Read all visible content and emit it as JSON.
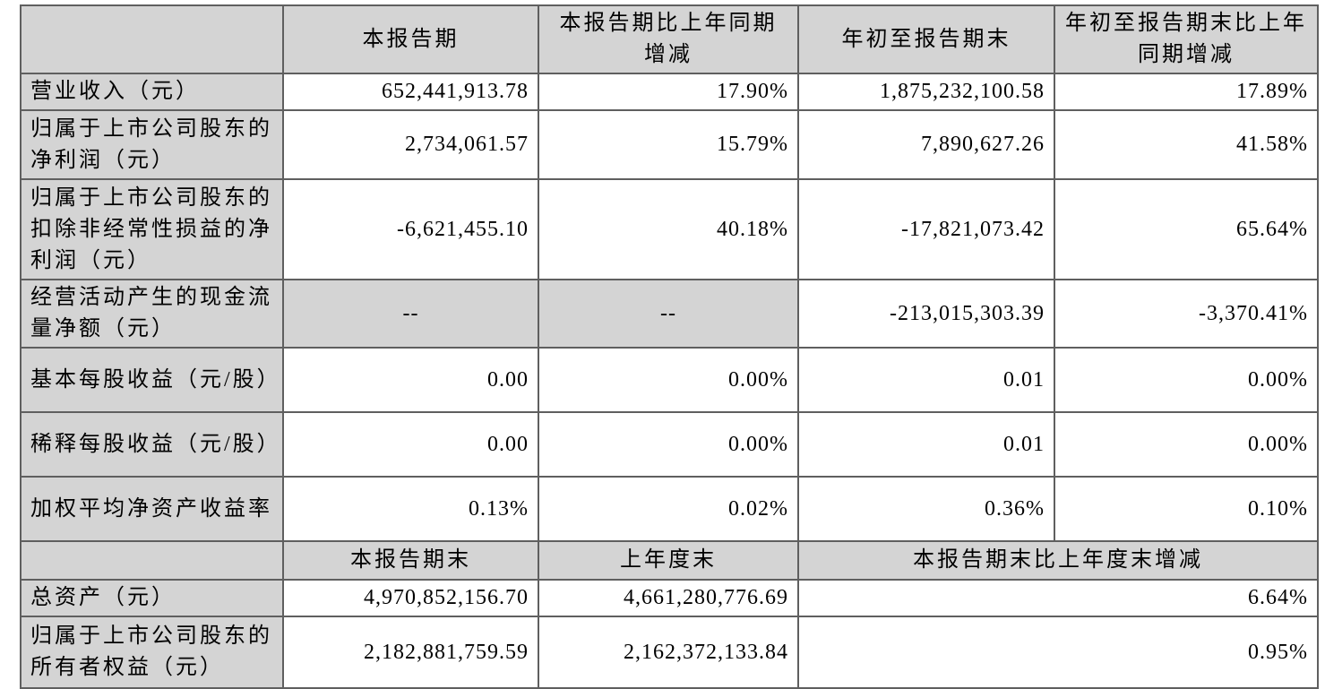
{
  "page": {
    "background_color": "#ffffff",
    "gray_fill_color": "#d4d4d4",
    "border_color": "#5f5f5f",
    "text_color": "#000000"
  },
  "table": {
    "top_header": {
      "col0": "",
      "col1": "本报告期",
      "col2": "本报告期比上年同期增减",
      "col3": "年初至报告期末",
      "col4": "年初至报告期末比上年同期增减"
    },
    "rows": [
      {
        "label": "营业收入（元）",
        "c1": "652,441,913.78",
        "c2": "17.90%",
        "c3": "1,875,232,100.58",
        "c4": "17.89%"
      },
      {
        "label": "归属于上市公司股东的净利润（元）",
        "c1": "2,734,061.57",
        "c2": "15.79%",
        "c3": "7,890,627.26",
        "c4": "41.58%"
      },
      {
        "label": "归属于上市公司股东的扣除非经常性损益的净利润（元）",
        "c1": "-6,621,455.10",
        "c2": "40.18%",
        "c3": "-17,821,073.42",
        "c4": "65.64%"
      },
      {
        "label": "经营活动产生的现金流量净额（元）",
        "c1": "--",
        "c2": "--",
        "c3": "-213,015,303.39",
        "c4": "-3,370.41%"
      },
      {
        "label": "基本每股收益（元/股）",
        "c1": "0.00",
        "c2": "0.00%",
        "c3": "0.01",
        "c4": "0.00%"
      },
      {
        "label": "稀释每股收益（元/股）",
        "c1": "0.00",
        "c2": "0.00%",
        "c3": "0.01",
        "c4": "0.00%"
      },
      {
        "label": "加权平均净资产收益率",
        "c1": "0.13%",
        "c2": "0.02%",
        "c3": "0.36%",
        "c4": "0.10%"
      }
    ],
    "sub_header": {
      "col0": "",
      "col1": "本报告期末",
      "col2": "上年度末",
      "col34": "本报告期末比上年度末增减"
    },
    "bottom_rows": [
      {
        "label": "总资产（元）",
        "c1": "4,970,852,156.70",
        "c2": "4,661,280,776.69",
        "c34": "6.64%"
      },
      {
        "label": "归属于上市公司股东的所有者权益（元）",
        "c1": "2,182,881,759.59",
        "c2": "2,162,372,133.84",
        "c34": "0.95%"
      }
    ]
  }
}
